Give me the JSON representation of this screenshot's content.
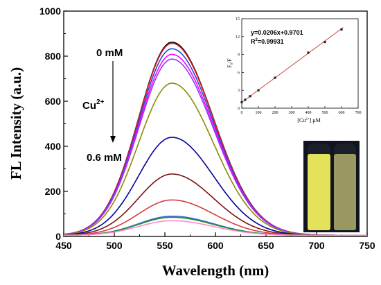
{
  "chart_data": [
    {
      "type": "line",
      "xlabel": "Wavelength (nm)",
      "ylabel": "FL Intensity (a.u.)",
      "xlim": [
        450,
        750
      ],
      "ylim": [
        0,
        1000
      ],
      "xticks": [
        "450",
        "500",
        "550",
        "600",
        "650",
        "700",
        "750"
      ],
      "yticks": [
        "0",
        "200",
        "400",
        "600",
        "800",
        "1000"
      ],
      "annotations": {
        "start": "0 mM",
        "ion": "Cu",
        "ion_charge": "2+",
        "end": "0.6 mM"
      },
      "peak_wavelength": 557,
      "series": [
        {
          "color": "#000000",
          "peak": 862
        },
        {
          "color": "#e41a1c",
          "peak": 857
        },
        {
          "color": "#1f4fd8",
          "peak": 833
        },
        {
          "color": "#ff00ff",
          "peak": 808
        },
        {
          "color": "#9933ff",
          "peak": 787
        },
        {
          "color": "#8a8a00",
          "peak": 680
        },
        {
          "color": "#000099",
          "peak": 440
        },
        {
          "color": "#7a1010",
          "peak": 277
        },
        {
          "color": "#d93a3a",
          "peak": 162
        },
        {
          "color": "#2a6ad8",
          "peak": 90
        },
        {
          "color": "#2e8b2e",
          "peak": 85
        },
        {
          "color": "#ff88cc",
          "peak": 70
        }
      ]
    },
    {
      "type": "scatter",
      "xlabel_main": "[Cu",
      "xlabel_sup": "2+",
      "xlabel_unit": "] μM",
      "ylabel_main": "F",
      "ylabel_sub": "0",
      "ylabel_tail": "/F",
      "xlim": [
        0,
        700
      ],
      "ylim": [
        0,
        15
      ],
      "xticks": [
        "0",
        "100",
        "200",
        "300",
        "400",
        "500",
        "600",
        "700"
      ],
      "yticks": [
        "0",
        "3",
        "6",
        "9",
        "12",
        "15"
      ],
      "x": [
        0,
        20,
        50,
        100,
        200,
        400,
        500,
        600
      ],
      "y": [
        1.0,
        1.4,
        2.0,
        3.0,
        5.1,
        9.3,
        11.1,
        13.2
      ],
      "fit": {
        "slope": 0.0206,
        "intercept": 0.9701
      },
      "equation": "y=0.0206x+0.9701",
      "r2_prefix": "R",
      "r2_sup": "2",
      "r2_value": "=0.99931"
    }
  ],
  "photo": {
    "vial_left_color": "#e4e25a",
    "vial_right_color": "#9a9862",
    "background": "#0f1420"
  }
}
